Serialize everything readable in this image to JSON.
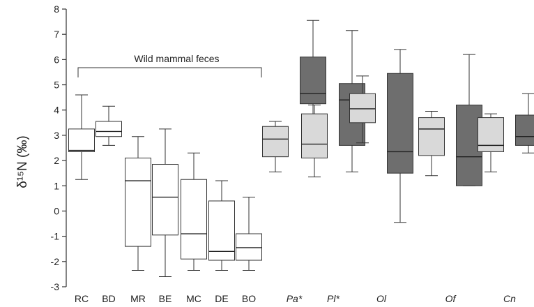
{
  "chart_data": {
    "type": "boxplot",
    "ylabel": "δ¹⁵N (‰)",
    "ylim": [
      -3,
      8
    ],
    "yticks": [
      "-3",
      "-2",
      "-1",
      "0",
      "1",
      "2",
      "3",
      "4",
      "5",
      "6",
      "7",
      "8"
    ],
    "grid": false,
    "colors": {
      "white": "#ffffff",
      "light": "#d9d9d9",
      "dark": "#6e6e6e",
      "stroke": "#333333"
    },
    "bracket": {
      "label": "Wild mammal feces",
      "from": "RC",
      "to": "BO"
    },
    "categories": [
      {
        "label": "RC",
        "italic": false
      },
      {
        "label": "BD",
        "italic": false
      },
      {
        "label": "MR",
        "italic": false
      },
      {
        "label": "BE",
        "italic": false
      },
      {
        "label": "MC",
        "italic": false
      },
      {
        "label": "DE",
        "italic": false
      },
      {
        "label": "BO",
        "italic": false
      },
      {
        "label": "Pa*",
        "italic": true
      },
      {
        "label": "Pl*",
        "italic": true
      },
      {
        "label": "Ol",
        "italic": true
      },
      {
        "label": "Of",
        "italic": true
      },
      {
        "label": "Cn",
        "italic": true
      }
    ],
    "boxes": [
      {
        "category": "RC",
        "fill": "white",
        "min": 1.25,
        "q1": 2.35,
        "median": 2.4,
        "q3": 3.25,
        "max": 4.6
      },
      {
        "category": "BD",
        "fill": "white",
        "min": 2.6,
        "q1": 2.95,
        "median": 3.15,
        "q3": 3.55,
        "max": 4.15
      },
      {
        "category": "MR",
        "fill": "white",
        "min": -2.35,
        "q1": -1.4,
        "median": 1.2,
        "q3": 2.1,
        "max": 2.95
      },
      {
        "category": "BE",
        "fill": "white",
        "min": -2.6,
        "q1": -0.95,
        "median": 0.55,
        "q3": 1.85,
        "max": 3.25
      },
      {
        "category": "MC",
        "fill": "white",
        "min": -2.35,
        "q1": -1.9,
        "median": -0.9,
        "q3": 1.25,
        "max": 2.3
      },
      {
        "category": "DE",
        "fill": "white",
        "min": -2.35,
        "q1": -1.95,
        "median": -1.6,
        "q3": 0.4,
        "max": 1.2
      },
      {
        "category": "BO",
        "fill": "white",
        "min": -2.35,
        "q1": -1.95,
        "median": -1.45,
        "q3": -0.9,
        "max": 0.55
      },
      {
        "category": "Pa*",
        "fill": "light",
        "min": 1.55,
        "q1": 2.15,
        "median": 2.85,
        "q3": 3.35,
        "max": 3.55
      },
      {
        "category": "Pa*",
        "fill": "dark",
        "min": 3.5,
        "q1": 4.25,
        "median": 4.65,
        "q3": 6.1,
        "max": 7.55
      },
      {
        "category": "Pl*",
        "fill": "light",
        "min": 1.35,
        "q1": 2.1,
        "median": 2.65,
        "q3": 3.85,
        "max": 4.2
      },
      {
        "category": "Pl*",
        "fill": "dark",
        "min": 1.55,
        "q1": 2.6,
        "median": 4.4,
        "q3": 5.05,
        "max": 7.15
      },
      {
        "category": "Ol",
        "fill": "light",
        "min": 2.7,
        "q1": 3.5,
        "median": 4.05,
        "q3": 4.65,
        "max": 5.35
      },
      {
        "category": "Ol",
        "fill": "dark",
        "min": -0.45,
        "q1": 1.5,
        "median": 2.35,
        "q3": 5.45,
        "max": 6.4
      },
      {
        "category": "Of",
        "fill": "light",
        "min": 1.4,
        "q1": 2.2,
        "median": 3.25,
        "q3": 3.7,
        "max": 3.95
      },
      {
        "category": "Of",
        "fill": "dark",
        "min": 1.0,
        "q1": 1.0,
        "median": 2.15,
        "q3": 4.2,
        "max": 6.2
      },
      {
        "category": "Cn",
        "fill": "light",
        "min": 1.55,
        "q1": 2.35,
        "median": 2.6,
        "q3": 3.7,
        "max": 3.85
      },
      {
        "category": "Cn",
        "fill": "dark",
        "min": 2.3,
        "q1": 2.6,
        "median": 2.95,
        "q3": 3.8,
        "max": 4.65
      }
    ]
  }
}
